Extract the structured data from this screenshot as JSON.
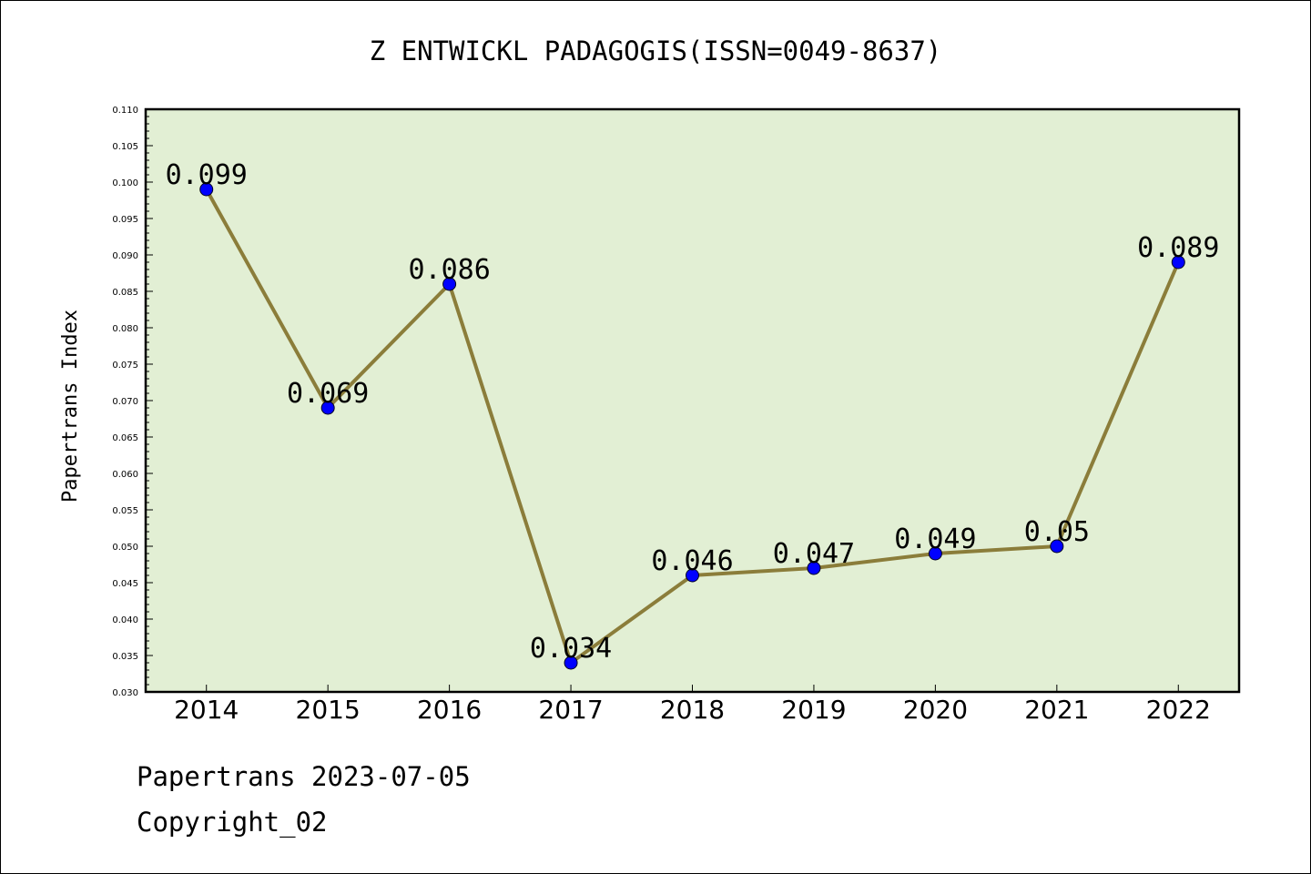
{
  "chart_data": {
    "type": "line",
    "title": "Z ENTWICKL PADAGOGIS(ISSN=0049-8637)",
    "xlabel": "",
    "ylabel": "Papertrans Index",
    "categories": [
      "2014",
      "2015",
      "2016",
      "2017",
      "2018",
      "2019",
      "2020",
      "2021",
      "2022"
    ],
    "values": [
      0.099,
      0.069,
      0.086,
      0.034,
      0.046,
      0.047,
      0.049,
      0.05,
      0.089
    ],
    "data_labels": [
      "0.099",
      "0.069",
      "0.086",
      "0.034",
      "0.046",
      "0.047",
      "0.049",
      "0.05",
      "0.089"
    ],
    "ylim": [
      0.03,
      0.11
    ],
    "yticks": [
      "0.030",
      "0.035",
      "0.040",
      "0.045",
      "0.050",
      "0.055",
      "0.060",
      "0.065",
      "0.070",
      "0.075",
      "0.080",
      "0.085",
      "0.090",
      "0.095",
      "0.100",
      "0.105",
      "0.110"
    ],
    "grid": false,
    "colors": {
      "plot_background": "#e2efd4",
      "line": "#8b7d3a",
      "marker": "#0000ff"
    }
  },
  "footer": {
    "line1": "Papertrans 2023-07-05",
    "line2": "Copyright_02"
  }
}
